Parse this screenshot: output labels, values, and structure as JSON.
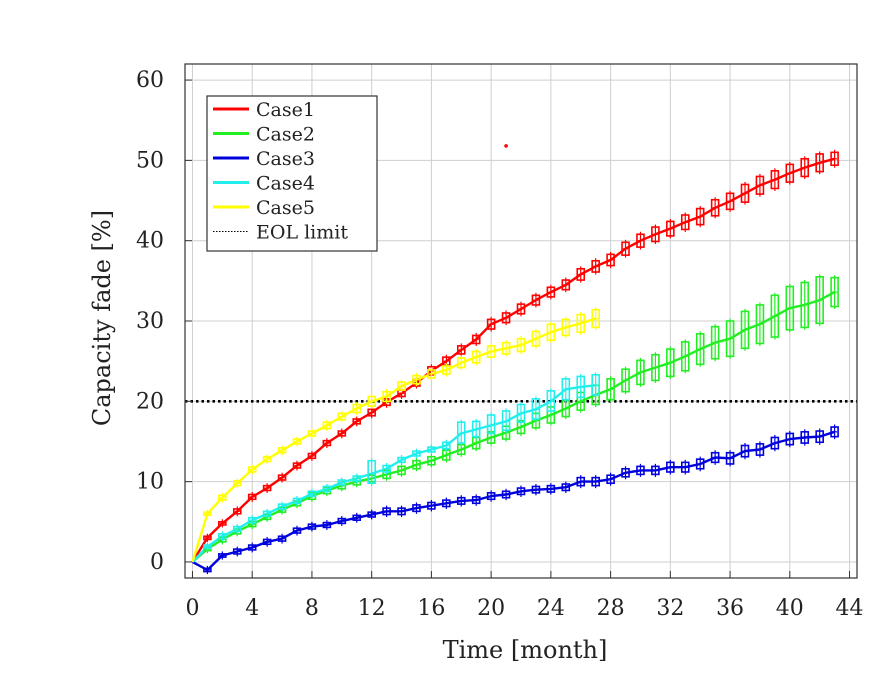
{
  "chart_data": {
    "type": "line",
    "title": "",
    "xlabel": "Time [month]",
    "ylabel": "Capacity fade [%]",
    "xlim": [
      -0.5,
      44.5
    ],
    "ylim": [
      -2,
      62
    ],
    "xticks": [
      0,
      4,
      8,
      12,
      16,
      20,
      24,
      28,
      32,
      36,
      40,
      44
    ],
    "yticks": [
      0,
      10,
      20,
      30,
      40,
      50,
      60
    ],
    "grid": true,
    "legend_position": "top-left",
    "series": [
      {
        "name": "Case1",
        "color": "#ff0000",
        "x": [
          0,
          1,
          2,
          3,
          4,
          5,
          6,
          7,
          8,
          9,
          10,
          11,
          12,
          13,
          14,
          15,
          16,
          17,
          18,
          19,
          20,
          21,
          22,
          23,
          24,
          25,
          26,
          27,
          28,
          29,
          30,
          31,
          32,
          33,
          34,
          35,
          36,
          37,
          38,
          39,
          40,
          41,
          42,
          43
        ],
        "y": [
          0,
          3.0,
          4.8,
          6.3,
          8.1,
          9.2,
          10.5,
          12.0,
          13.2,
          14.8,
          16.0,
          17.5,
          18.6,
          19.9,
          21.0,
          22.3,
          23.8,
          25.0,
          26.4,
          27.7,
          29.6,
          30.4,
          31.5,
          32.6,
          33.6,
          34.5,
          35.8,
          36.8,
          37.6,
          39.0,
          40.0,
          40.8,
          41.5,
          42.3,
          43.0,
          44.1,
          44.9,
          45.9,
          46.9,
          47.6,
          48.4,
          49.1,
          49.7,
          50.2
        ],
        "ymin": [
          0,
          2.8,
          4.6,
          6.0,
          7.8,
          8.9,
          10.2,
          11.7,
          12.9,
          14.5,
          15.7,
          17.2,
          18.2,
          19.5,
          20.6,
          21.9,
          23.3,
          24.5,
          25.9,
          27.2,
          29.0,
          29.8,
          30.9,
          32.0,
          33.0,
          33.9,
          35.1,
          36.1,
          36.9,
          38.2,
          39.2,
          39.9,
          40.6,
          41.4,
          42.0,
          43.1,
          43.9,
          44.8,
          45.8,
          46.5,
          47.3,
          48.0,
          48.6,
          49.4
        ],
        "ymax": [
          0,
          3.2,
          5.0,
          6.6,
          8.4,
          9.5,
          10.8,
          12.3,
          13.5,
          15.1,
          16.3,
          17.8,
          19.0,
          20.3,
          21.4,
          22.7,
          24.3,
          25.5,
          26.9,
          28.2,
          30.2,
          31.0,
          32.1,
          33.2,
          34.2,
          35.1,
          36.5,
          37.5,
          38.3,
          39.8,
          40.8,
          41.7,
          42.4,
          43.2,
          44.0,
          45.1,
          45.9,
          47.0,
          48.0,
          48.7,
          49.5,
          50.2,
          50.8,
          51.0
        ]
      },
      {
        "name": "Case2",
        "color": "#22ee22",
        "x": [
          0,
          1,
          2,
          3,
          4,
          5,
          6,
          7,
          8,
          9,
          10,
          11,
          12,
          13,
          14,
          15,
          16,
          17,
          18,
          19,
          20,
          21,
          22,
          23,
          24,
          25,
          26,
          27,
          28,
          29,
          30,
          31,
          32,
          33,
          34,
          35,
          36,
          37,
          38,
          39,
          40,
          41,
          42,
          43
        ],
        "y": [
          0,
          1.6,
          2.8,
          3.8,
          4.7,
          5.6,
          6.5,
          7.3,
          8.2,
          8.9,
          9.5,
          10.0,
          10.4,
          10.9,
          11.4,
          12.1,
          12.6,
          13.3,
          14.0,
          14.8,
          15.5,
          16.1,
          16.8,
          17.6,
          18.3,
          19.1,
          20.0,
          20.8,
          21.5,
          22.6,
          23.6,
          24.2,
          24.8,
          25.6,
          26.5,
          27.3,
          27.8,
          28.9,
          29.6,
          30.6,
          31.6,
          32.0,
          32.6,
          33.6
        ],
        "ymin": [
          0,
          1.4,
          2.5,
          3.5,
          4.4,
          5.3,
          6.2,
          7.0,
          7.8,
          8.5,
          9.1,
          9.6,
          10.0,
          10.4,
          10.9,
          11.6,
          12.1,
          12.7,
          13.4,
          14.1,
          14.8,
          15.3,
          16.0,
          16.7,
          17.3,
          18.1,
          18.9,
          19.6,
          20.2,
          21.2,
          22.1,
          22.6,
          23.1,
          23.8,
          24.6,
          25.3,
          25.6,
          26.6,
          27.2,
          28.0,
          28.9,
          29.2,
          29.7,
          31.8
        ],
        "ymax": [
          0,
          1.8,
          3.1,
          4.1,
          5.0,
          5.9,
          6.8,
          7.6,
          8.6,
          9.3,
          9.9,
          10.4,
          10.8,
          11.4,
          11.9,
          12.6,
          13.1,
          13.9,
          14.6,
          15.5,
          16.2,
          16.9,
          17.6,
          18.5,
          19.3,
          20.1,
          21.1,
          22.0,
          22.8,
          24.0,
          25.1,
          25.8,
          26.5,
          27.4,
          28.4,
          29.3,
          30.0,
          31.2,
          32.0,
          33.2,
          34.3,
          34.8,
          35.5,
          35.4
        ]
      },
      {
        "name": "Case3",
        "color": "#0000dd",
        "x": [
          0,
          1,
          2,
          3,
          4,
          5,
          6,
          7,
          8,
          9,
          10,
          11,
          12,
          13,
          14,
          15,
          16,
          17,
          18,
          19,
          20,
          21,
          22,
          23,
          24,
          25,
          26,
          27,
          28,
          29,
          30,
          31,
          32,
          33,
          34,
          35,
          36,
          37,
          38,
          39,
          40,
          41,
          42,
          43
        ],
        "y": [
          0,
          -1.0,
          0.8,
          1.3,
          1.8,
          2.5,
          2.9,
          3.9,
          4.4,
          4.6,
          5.1,
          5.5,
          5.9,
          6.3,
          6.3,
          6.7,
          7.0,
          7.3,
          7.6,
          7.7,
          8.2,
          8.4,
          8.8,
          9.0,
          9.1,
          9.3,
          10.0,
          10.0,
          10.3,
          11.1,
          11.4,
          11.4,
          11.8,
          11.8,
          12.2,
          13.0,
          12.9,
          13.8,
          14.0,
          14.8,
          15.3,
          15.5,
          15.6,
          16.2
        ],
        "ymin": [
          0,
          -1.2,
          0.6,
          1.0,
          1.5,
          2.2,
          2.6,
          3.6,
          4.1,
          4.3,
          4.8,
          5.2,
          5.6,
          5.9,
          5.9,
          6.3,
          6.6,
          6.9,
          7.2,
          7.3,
          7.8,
          8.0,
          8.4,
          8.6,
          8.7,
          8.9,
          9.5,
          9.5,
          9.8,
          10.6,
          10.9,
          10.9,
          11.2,
          11.2,
          11.6,
          12.4,
          12.2,
          13.1,
          13.3,
          14.1,
          14.6,
          14.8,
          14.9,
          15.6
        ],
        "ymax": [
          0,
          -0.8,
          1.0,
          1.6,
          2.1,
          2.8,
          3.2,
          4.2,
          4.7,
          4.9,
          5.4,
          5.8,
          6.2,
          6.7,
          6.7,
          7.1,
          7.4,
          7.7,
          8.0,
          8.1,
          8.6,
          8.8,
          9.2,
          9.4,
          9.5,
          9.7,
          10.5,
          10.5,
          10.8,
          11.6,
          11.9,
          11.9,
          12.4,
          12.4,
          12.8,
          13.6,
          13.6,
          14.5,
          14.7,
          15.5,
          16.0,
          16.2,
          16.3,
          16.8
        ]
      },
      {
        "name": "Case4",
        "color": "#22eeee",
        "x": [
          0,
          1,
          2,
          3,
          4,
          5,
          6,
          7,
          8,
          9,
          10,
          11,
          12,
          13,
          14,
          15,
          16,
          17,
          18,
          19,
          20,
          21,
          22,
          23,
          24,
          25,
          26,
          27
        ],
        "y": [
          0,
          1.9,
          3.2,
          4.1,
          5.2,
          6.0,
          6.9,
          7.6,
          8.5,
          9.1,
          9.9,
          10.4,
          11.0,
          11.6,
          12.7,
          13.5,
          14.0,
          14.5,
          16.0,
          16.5,
          17.0,
          17.5,
          18.5,
          19.0,
          20.0,
          21.5,
          21.8,
          22.0
        ],
        "ymin": [
          0,
          1.7,
          2.9,
          3.8,
          4.9,
          5.7,
          6.6,
          7.3,
          8.2,
          8.8,
          9.6,
          10.1,
          9.8,
          11.2,
          12.4,
          13.2,
          13.7,
          14.1,
          14.8,
          15.6,
          16.0,
          16.4,
          17.4,
          17.8,
          18.8,
          20.2,
          20.5,
          20.8
        ],
        "ymax": [
          0,
          2.1,
          3.5,
          4.4,
          5.5,
          6.3,
          7.2,
          7.9,
          8.8,
          9.4,
          10.2,
          10.7,
          12.6,
          12.0,
          13.0,
          13.8,
          14.3,
          14.9,
          17.4,
          17.5,
          18.3,
          18.8,
          19.6,
          20.3,
          21.3,
          22.8,
          23.1,
          23.3
        ]
      },
      {
        "name": "Case5",
        "color": "#ffff00",
        "x": [
          0,
          1,
          2,
          3,
          4,
          5,
          6,
          7,
          8,
          9,
          10,
          11,
          12,
          13,
          14,
          15,
          16,
          17,
          18,
          19,
          20,
          21,
          22,
          23,
          24,
          25,
          26,
          27
        ],
        "y": [
          0,
          6.0,
          8.0,
          9.8,
          11.5,
          12.8,
          13.9,
          15.0,
          16.0,
          17.0,
          18.1,
          19.1,
          20.0,
          20.6,
          21.9,
          22.7,
          23.4,
          23.9,
          24.8,
          25.5,
          26.2,
          26.6,
          27.0,
          27.8,
          28.6,
          29.2,
          29.7,
          30.3
        ],
        "ymin": [
          0,
          5.8,
          7.7,
          9.5,
          11.2,
          12.5,
          13.6,
          14.7,
          15.7,
          16.6,
          17.7,
          18.6,
          19.4,
          20.0,
          21.4,
          22.2,
          22.9,
          23.4,
          24.2,
          24.8,
          25.5,
          25.9,
          26.2,
          26.9,
          27.6,
          28.2,
          28.6,
          29.2
        ],
        "ymax": [
          0,
          6.2,
          8.3,
          10.1,
          11.8,
          13.1,
          14.2,
          15.3,
          16.3,
          17.4,
          18.5,
          19.6,
          20.6,
          21.2,
          22.4,
          23.2,
          23.9,
          24.4,
          25.4,
          26.2,
          26.9,
          27.3,
          27.8,
          28.7,
          29.6,
          30.2,
          30.8,
          31.4
        ]
      }
    ],
    "reference_lines": [
      {
        "name": "EOL limit",
        "y": 20,
        "style": "dotted",
        "color": "#000000"
      }
    ],
    "outliers": [
      {
        "series": "Case1",
        "x": 21,
        "y": 51.8
      }
    ]
  }
}
